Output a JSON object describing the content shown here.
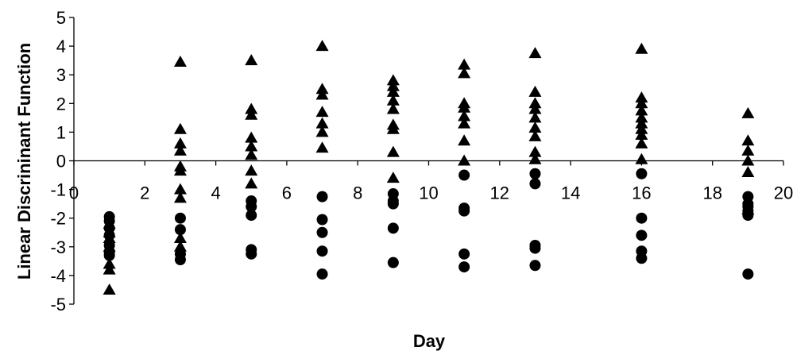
{
  "chart_data": {
    "type": "scatter",
    "title": "",
    "xlabel": "Day",
    "ylabel": "Linear Discrininant Function",
    "xlim": [
      0,
      20
    ],
    "ylim": [
      -5,
      5
    ],
    "xticks": [
      0,
      2,
      4,
      6,
      8,
      10,
      12,
      14,
      16,
      18,
      20
    ],
    "yticks": [
      -5,
      -4,
      -3,
      -2,
      -1,
      0,
      1,
      2,
      3,
      4,
      5
    ],
    "grid": false,
    "legend": "none",
    "marker_color": "#000000",
    "series": [
      {
        "marker": "triangle",
        "points": [
          [
            1,
            -2.2
          ],
          [
            1,
            -2.5
          ],
          [
            1,
            -2.7
          ],
          [
            1,
            -3.0
          ],
          [
            1,
            -3.6
          ],
          [
            1,
            -3.8
          ],
          [
            1,
            -4.5
          ],
          [
            3,
            3.45
          ],
          [
            3,
            1.1
          ],
          [
            3,
            0.6
          ],
          [
            3,
            0.35
          ],
          [
            3,
            -0.2
          ],
          [
            3,
            -0.35
          ],
          [
            3,
            -1.0
          ],
          [
            3,
            -1.3
          ],
          [
            3,
            -2.7
          ],
          [
            3,
            -3.0
          ],
          [
            5,
            3.5
          ],
          [
            5,
            1.8
          ],
          [
            5,
            1.6
          ],
          [
            5,
            0.8
          ],
          [
            5,
            0.5
          ],
          [
            5,
            0.2
          ],
          [
            5,
            -0.35
          ],
          [
            5,
            -0.8
          ],
          [
            7,
            4.0
          ],
          [
            7,
            2.5
          ],
          [
            7,
            2.3
          ],
          [
            7,
            1.7
          ],
          [
            7,
            1.3
          ],
          [
            7,
            1.0
          ],
          [
            7,
            0.45
          ],
          [
            9,
            2.8
          ],
          [
            9,
            2.6
          ],
          [
            9,
            2.4
          ],
          [
            9,
            2.1
          ],
          [
            9,
            1.8
          ],
          [
            9,
            1.25
          ],
          [
            9,
            1.1
          ],
          [
            9,
            0.3
          ],
          [
            9,
            -0.6
          ],
          [
            11,
            3.35
          ],
          [
            11,
            3.05
          ],
          [
            11,
            2.0
          ],
          [
            11,
            1.85
          ],
          [
            11,
            1.55
          ],
          [
            11,
            1.3
          ],
          [
            11,
            0.7
          ],
          [
            11,
            0.0
          ],
          [
            13,
            3.75
          ],
          [
            13,
            2.4
          ],
          [
            13,
            2.0
          ],
          [
            13,
            1.8
          ],
          [
            13,
            1.5
          ],
          [
            13,
            1.15
          ],
          [
            13,
            0.85
          ],
          [
            13,
            0.3
          ],
          [
            13,
            0.05
          ],
          [
            16,
            3.9
          ],
          [
            16,
            2.2
          ],
          [
            16,
            2.0
          ],
          [
            16,
            1.75
          ],
          [
            16,
            1.5
          ],
          [
            16,
            1.3
          ],
          [
            16,
            1.1
          ],
          [
            16,
            0.9
          ],
          [
            16,
            0.6
          ],
          [
            16,
            0.05
          ],
          [
            19,
            1.65
          ],
          [
            19,
            0.7
          ],
          [
            19,
            0.35
          ],
          [
            19,
            0.0
          ],
          [
            19,
            -0.4
          ],
          [
            19,
            -1.7
          ]
        ]
      },
      {
        "marker": "circle",
        "points": [
          [
            1,
            -1.95
          ],
          [
            1,
            -2.1
          ],
          [
            1,
            -2.35
          ],
          [
            1,
            -2.6
          ],
          [
            1,
            -2.95
          ],
          [
            1,
            -3.2
          ],
          [
            1,
            -3.3
          ],
          [
            3,
            -2.0
          ],
          [
            3,
            -2.4
          ],
          [
            3,
            -3.25
          ],
          [
            3,
            -3.45
          ],
          [
            5,
            -1.4
          ],
          [
            5,
            -1.6
          ],
          [
            5,
            -1.9
          ],
          [
            5,
            -3.1
          ],
          [
            5,
            -3.25
          ],
          [
            7,
            -1.25
          ],
          [
            7,
            -2.05
          ],
          [
            7,
            -2.5
          ],
          [
            7,
            -3.15
          ],
          [
            7,
            -3.95
          ],
          [
            9,
            -1.15
          ],
          [
            9,
            -1.4
          ],
          [
            9,
            -1.5
          ],
          [
            9,
            -2.35
          ],
          [
            9,
            -3.55
          ],
          [
            11,
            -0.5
          ],
          [
            11,
            -1.65
          ],
          [
            11,
            -1.75
          ],
          [
            11,
            -3.25
          ],
          [
            11,
            -3.7
          ],
          [
            13,
            -0.45
          ],
          [
            13,
            -0.8
          ],
          [
            13,
            -2.95
          ],
          [
            13,
            -3.05
          ],
          [
            13,
            -3.65
          ],
          [
            16,
            -0.45
          ],
          [
            16,
            -2.0
          ],
          [
            16,
            -2.6
          ],
          [
            16,
            -3.15
          ],
          [
            16,
            -3.4
          ],
          [
            19,
            -1.25
          ],
          [
            19,
            -1.5
          ],
          [
            19,
            -1.6
          ],
          [
            19,
            -1.75
          ],
          [
            19,
            -1.9
          ],
          [
            19,
            -3.95
          ]
        ]
      }
    ]
  }
}
